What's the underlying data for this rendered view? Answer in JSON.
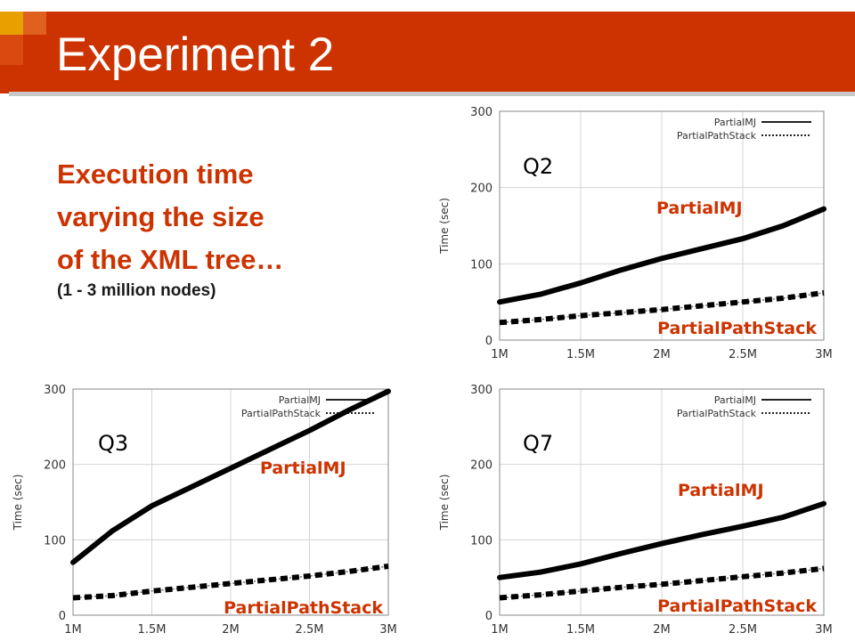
{
  "slide": {
    "title": "Experiment 2",
    "description": [
      "Execution time",
      "varying the size",
      "of the XML tree…"
    ],
    "subtitle": "(1 - 3 million nodes)",
    "colors": {
      "title_bg": "#cc3300",
      "accent_text": "#cc3300"
    }
  },
  "chart_data": [
    {
      "type": "line",
      "query_label": "Q2",
      "ylabel": "Time (sec)",
      "x_ticks": [
        "1M",
        "1.5M",
        "2M",
        "2.5M",
        "3M"
      ],
      "y_ticks": [
        "0",
        "100",
        "200",
        "300"
      ],
      "xlim": [
        1,
        3
      ],
      "ylim": [
        0,
        300
      ],
      "legend": {
        "position": "top-right",
        "entries": [
          "PartialMJ",
          "PartialPathStack"
        ]
      },
      "annotations": [
        "PartialMJ",
        "PartialPathStack"
      ],
      "series": [
        {
          "name": "PartialMJ",
          "x": [
            1,
            1.25,
            1.5,
            1.75,
            2,
            2.25,
            2.5,
            2.75,
            3
          ],
          "values": [
            50,
            60,
            75,
            92,
            107,
            120,
            133,
            150,
            172
          ]
        },
        {
          "name": "PartialPathStack",
          "x": [
            1,
            1.25,
            1.5,
            1.75,
            2,
            2.25,
            2.5,
            2.75,
            3
          ],
          "values": [
            23,
            27,
            32,
            36,
            40,
            45,
            50,
            55,
            62
          ]
        }
      ]
    },
    {
      "type": "line",
      "query_label": "Q3",
      "ylabel": "Time (sec)",
      "x_ticks": [
        "1M",
        "1.5M",
        "2M",
        "2.5M",
        "3M"
      ],
      "y_ticks": [
        "0",
        "100",
        "200",
        "300"
      ],
      "xlim": [
        1,
        3
      ],
      "ylim": [
        0,
        300
      ],
      "legend": {
        "position": "top-right",
        "entries": [
          "PartialMJ",
          "PartialPathStack"
        ]
      },
      "annotations": [
        "PartialMJ",
        "PartialPathStack"
      ],
      "series": [
        {
          "name": "PartialMJ",
          "x": [
            1,
            1.25,
            1.5,
            1.75,
            2,
            2.25,
            2.5,
            2.75,
            3
          ],
          "values": [
            70,
            112,
            145,
            170,
            195,
            220,
            245,
            272,
            297
          ]
        },
        {
          "name": "PartialPathStack",
          "x": [
            1,
            1.25,
            1.5,
            1.75,
            2,
            2.25,
            2.5,
            2.75,
            3
          ],
          "values": [
            23,
            26,
            32,
            37,
            42,
            47,
            52,
            58,
            65
          ]
        }
      ]
    },
    {
      "type": "line",
      "query_label": "Q7",
      "ylabel": "Time (sec)",
      "x_ticks": [
        "1M",
        "1.5M",
        "2M",
        "2.5M",
        "3M"
      ],
      "y_ticks": [
        "0",
        "100",
        "200",
        "300"
      ],
      "xlim": [
        1,
        3
      ],
      "ylim": [
        0,
        300
      ],
      "legend": {
        "position": "top-right",
        "entries": [
          "PartialMJ",
          "PartialPathStack"
        ]
      },
      "annotations": [
        "PartialMJ",
        "PartialPathStack"
      ],
      "series": [
        {
          "name": "PartialMJ",
          "x": [
            1,
            1.25,
            1.5,
            1.75,
            2,
            2.25,
            2.5,
            2.75,
            3
          ],
          "values": [
            50,
            57,
            68,
            82,
            95,
            107,
            118,
            130,
            148
          ]
        },
        {
          "name": "PartialPathStack",
          "x": [
            1,
            1.25,
            1.5,
            1.75,
            2,
            2.25,
            2.5,
            2.75,
            3
          ],
          "values": [
            23,
            27,
            32,
            37,
            41,
            46,
            51,
            56,
            62
          ]
        }
      ]
    }
  ]
}
